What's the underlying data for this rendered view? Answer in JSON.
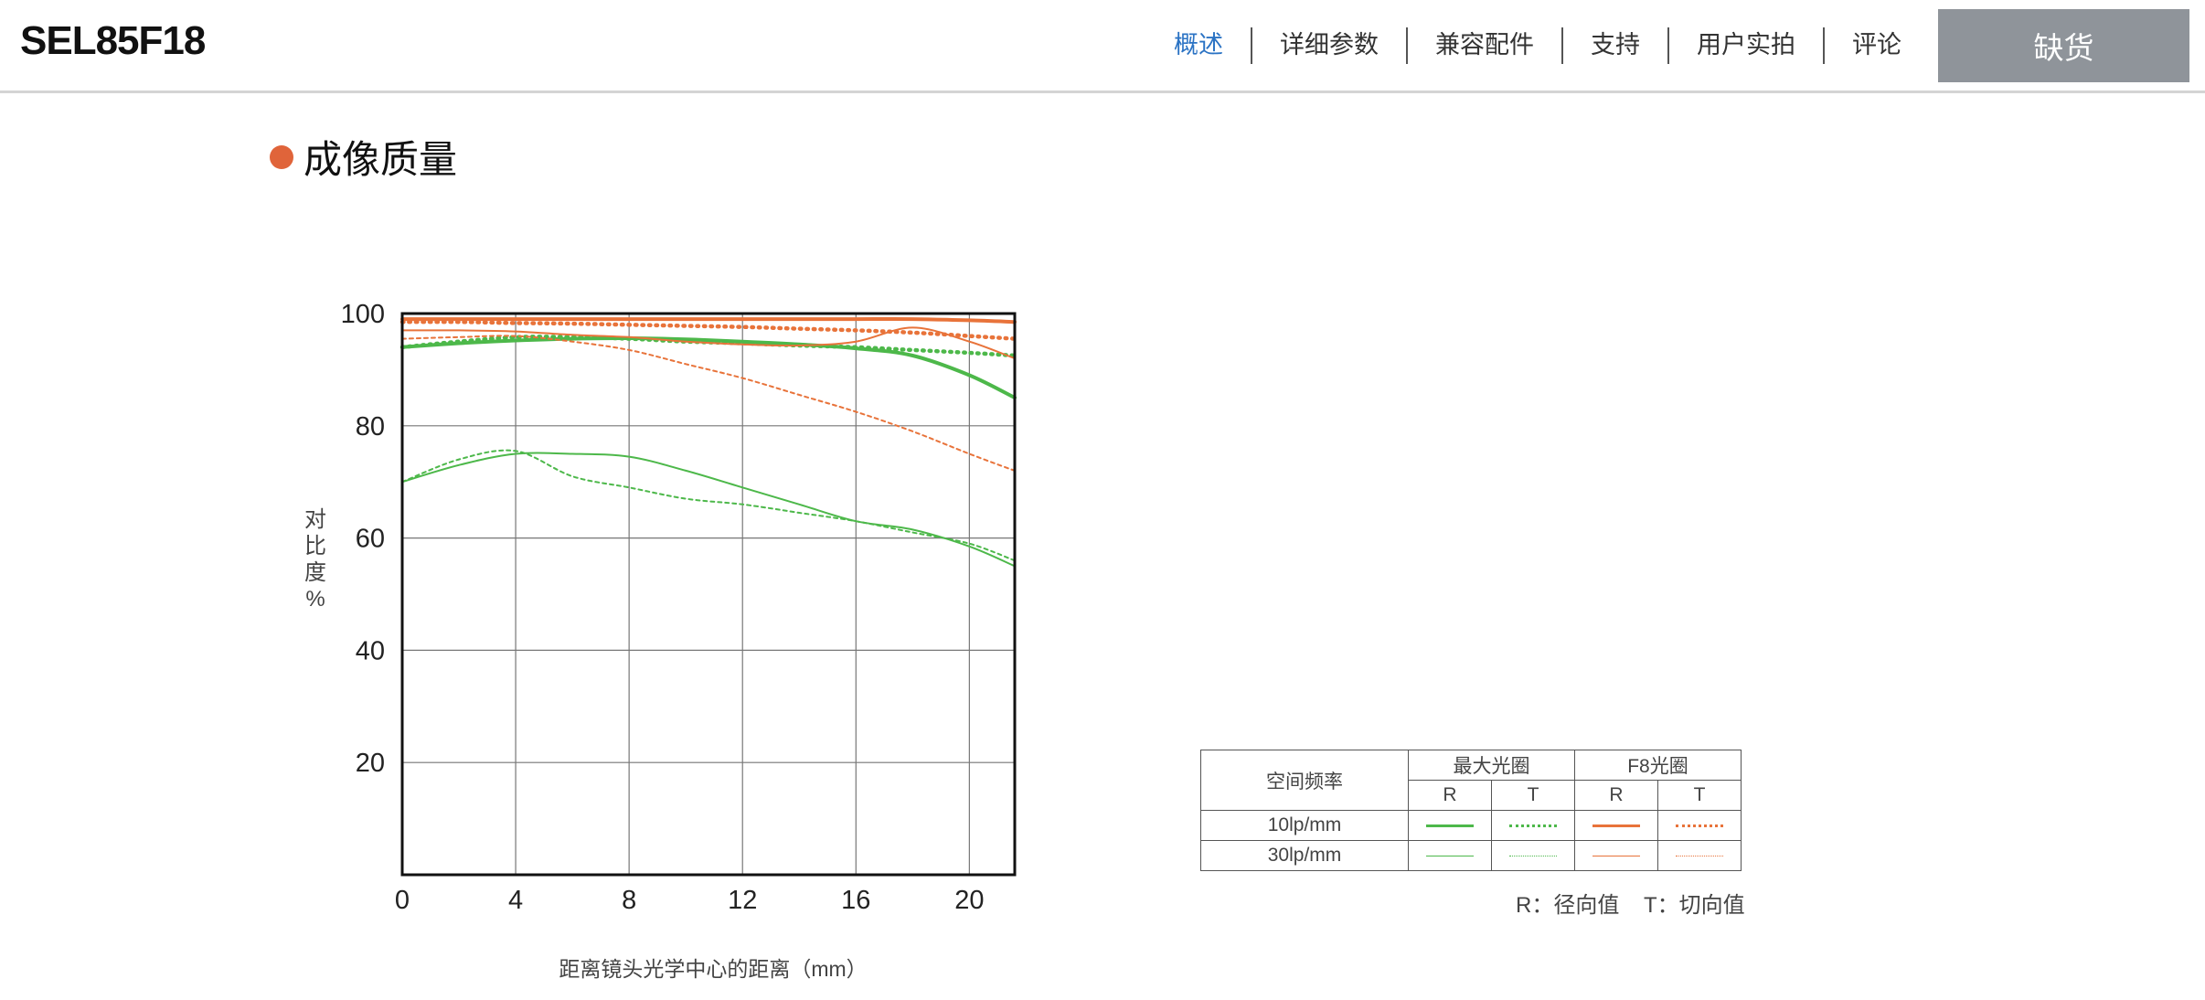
{
  "header": {
    "product_name": "SEL85F18",
    "nav": [
      "概述",
      "详细参数",
      "兼容配件",
      "支持",
      "用户实拍",
      "评论"
    ],
    "stock_button": "缺货"
  },
  "section": {
    "title": "成像质量"
  },
  "colors": {
    "accent_orange": "#e0643a",
    "nav_active": "#2b73c4",
    "button_gray": "#8f949a",
    "green": "#4db84a",
    "orange": "#e8733a"
  },
  "legend": {
    "col_freq": "空间频率",
    "col_max": "最大光圈",
    "col_f8": "F8光圈",
    "r": "R",
    "t": "T",
    "row_10": "10lp/mm",
    "row_30": "30lp/mm",
    "note": "R：径向值    T：切向值"
  },
  "chart_data": {
    "type": "line",
    "xlabel": "距离镜头光学中心的距离（mm）",
    "ylabel": "对比度%",
    "xlim": [
      0,
      21.6
    ],
    "ylim": [
      0,
      100
    ],
    "xticks": [
      0,
      4,
      8,
      12,
      16,
      20
    ],
    "yticks": [
      20,
      40,
      60,
      80,
      100
    ],
    "grid": true,
    "series": [
      {
        "name": "最大光圈 R 10lp/mm",
        "x": [
          0,
          2,
          4,
          6,
          8,
          10,
          12,
          14,
          16,
          18,
          20,
          21.6
        ],
        "y": [
          94,
          94.7,
          95.2,
          95.5,
          95.6,
          95.4,
          95,
          94.5,
          93.8,
          92.5,
          89,
          85
        ]
      },
      {
        "name": "最大光圈 T 10lp/mm",
        "x": [
          0,
          2,
          4,
          6,
          8,
          10,
          12,
          14,
          16,
          18,
          20,
          21.6
        ],
        "y": [
          94,
          95,
          95.8,
          95.8,
          95.5,
          95,
          94.7,
          94.3,
          94,
          93.5,
          93,
          92.5
        ]
      },
      {
        "name": "最大光圈 R 30lp/mm",
        "x": [
          0,
          2,
          4,
          6,
          8,
          10,
          12,
          14,
          16,
          18,
          20,
          21.6
        ],
        "y": [
          70,
          73,
          75,
          75,
          74.5,
          72,
          69,
          66,
          63,
          61.5,
          58.5,
          55
        ]
      },
      {
        "name": "最大光圈 T 30lp/mm",
        "x": [
          0,
          2,
          4,
          6,
          8,
          10,
          12,
          14,
          16,
          18,
          20,
          21.6
        ],
        "y": [
          70,
          74,
          75.5,
          71,
          69,
          67,
          66,
          64.5,
          63,
          61,
          59,
          56
        ]
      },
      {
        "name": "F8光圈 R 10lp/mm",
        "x": [
          0,
          2,
          4,
          6,
          8,
          10,
          12,
          14,
          16,
          18,
          20,
          21.6
        ],
        "y": [
          99,
          99,
          99,
          99,
          99,
          99,
          99,
          99,
          99,
          99,
          98.8,
          98.5
        ]
      },
      {
        "name": "F8光圈 T 10lp/mm",
        "x": [
          0,
          2,
          4,
          6,
          8,
          10,
          12,
          14,
          16,
          18,
          20,
          21.6
        ],
        "y": [
          98.5,
          98.5,
          98.3,
          98.2,
          98,
          97.8,
          97.6,
          97.3,
          97,
          96.6,
          96,
          95.5
        ]
      },
      {
        "name": "F8光圈 R 30lp/mm",
        "x": [
          0,
          2,
          4,
          6,
          8,
          10,
          12,
          14,
          16,
          18,
          20,
          21.6
        ],
        "y": [
          97,
          97,
          96.8,
          96.2,
          95.8,
          95,
          94.5,
          94.3,
          95,
          97.5,
          95,
          92
        ]
      },
      {
        "name": "F8光圈 T 30lp/mm",
        "x": [
          0,
          2,
          4,
          6,
          8,
          10,
          12,
          14,
          16,
          18,
          20,
          21.6
        ],
        "y": [
          95.5,
          95.8,
          96,
          95,
          93.5,
          91,
          88.5,
          85.5,
          82.5,
          79,
          75,
          72
        ]
      }
    ]
  }
}
